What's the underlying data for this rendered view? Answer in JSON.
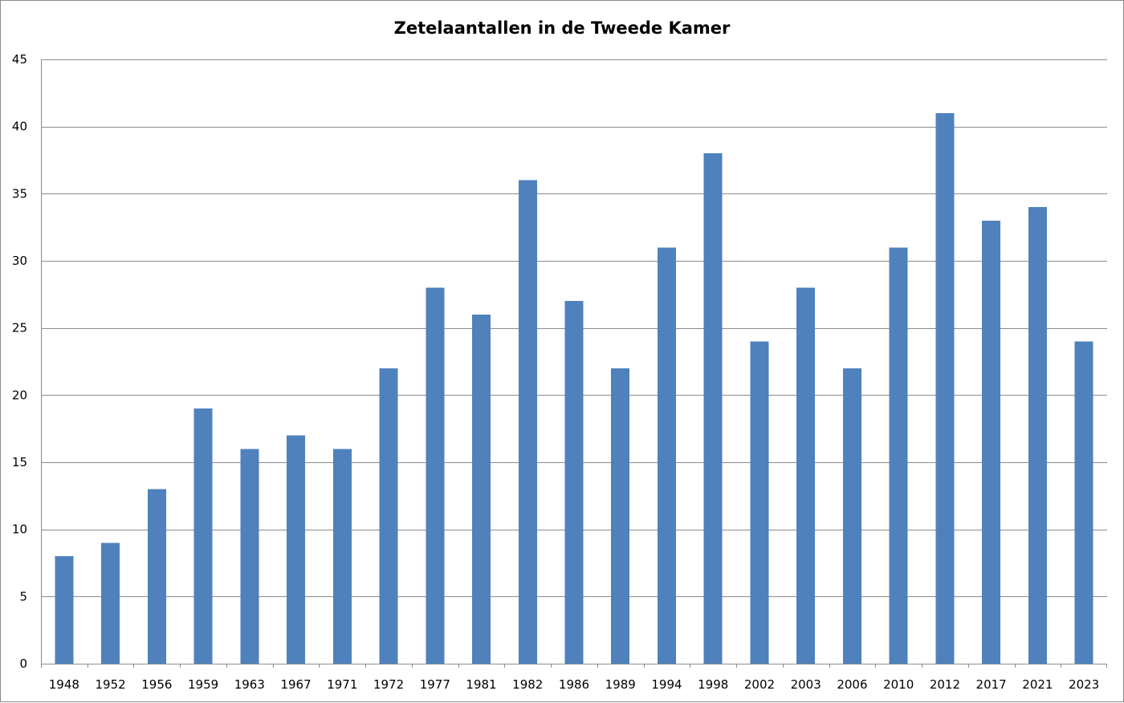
{
  "chart_data": {
    "type": "bar",
    "title": "Zetelaantallen in de Tweede Kamer",
    "xlabel": "",
    "ylabel": "",
    "categories": [
      "1948",
      "1952",
      "1956",
      "1959",
      "1963",
      "1967",
      "1971",
      "1972",
      "1977",
      "1981",
      "1982",
      "1986",
      "1989",
      "1994",
      "1998",
      "2002",
      "2003",
      "2006",
      "2010",
      "2012",
      "2017",
      "2021",
      "2023"
    ],
    "values": [
      8,
      9,
      13,
      19,
      16,
      17,
      16,
      22,
      28,
      26,
      36,
      27,
      22,
      31,
      38,
      24,
      28,
      22,
      31,
      41,
      33,
      34,
      24
    ],
    "ylim": [
      0,
      45
    ],
    "yticks": [
      0,
      5,
      10,
      15,
      20,
      25,
      30,
      35,
      40,
      45
    ],
    "grid": true,
    "legend": "none",
    "bar_color": "#4f81bd"
  }
}
